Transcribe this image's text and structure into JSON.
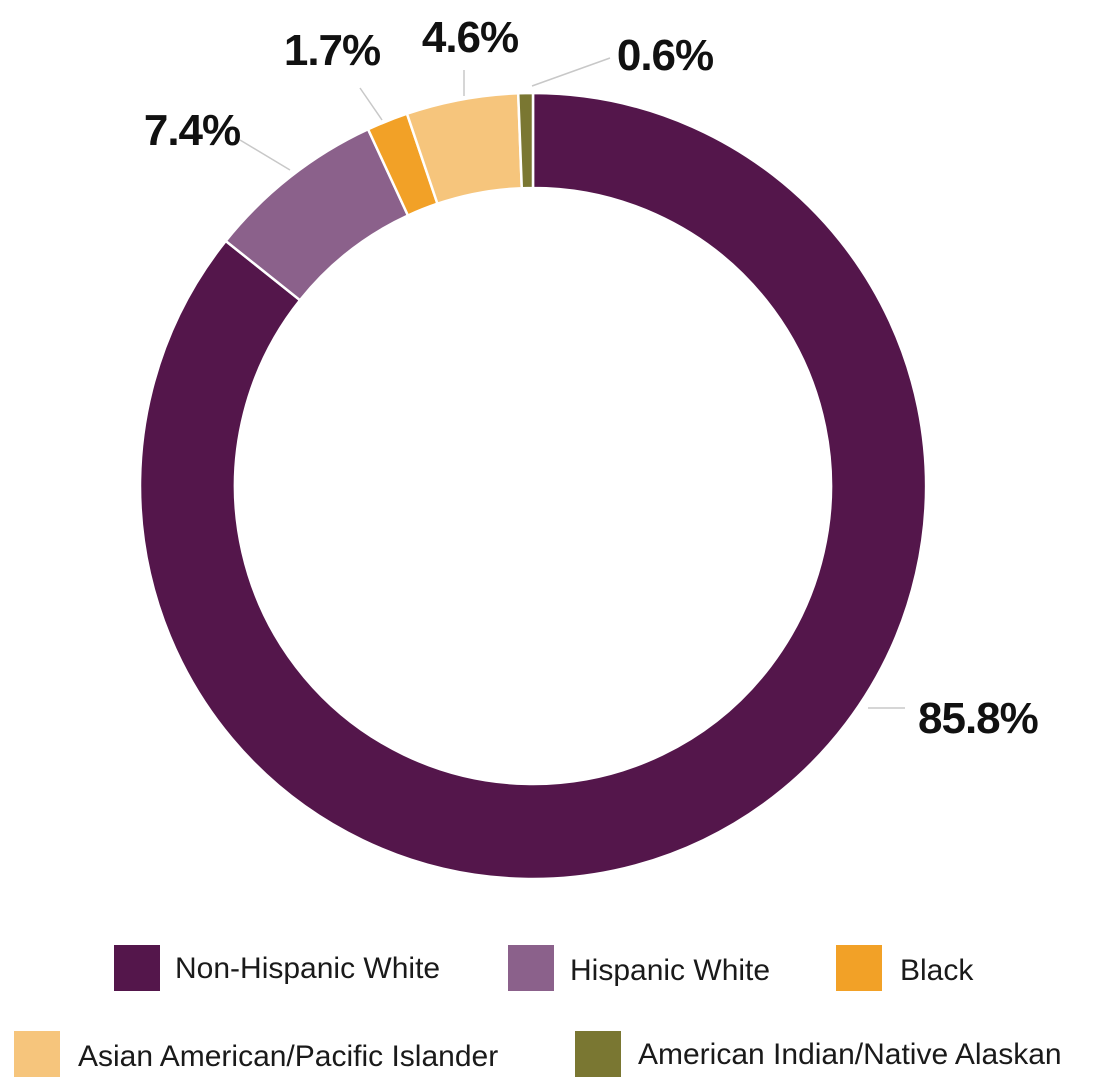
{
  "chart_data": {
    "type": "pie",
    "variant": "donut",
    "title": "",
    "legend_position": "bottom",
    "slices": [
      {
        "name": "Non-Hispanic White",
        "value": 85.8,
        "label": "85.8%",
        "color": "#54164b"
      },
      {
        "name": "Hispanic White",
        "value": 7.4,
        "label": "7.4%",
        "color": "#8b618b"
      },
      {
        "name": "Black",
        "value": 1.7,
        "label": "1.7%",
        "color": "#f2a127"
      },
      {
        "name": "Asian American/Pacific Islander",
        "value": 4.6,
        "label": "4.6%",
        "color": "#f6c57c"
      },
      {
        "name": "American Indian/Native Alaskan",
        "value": 0.6,
        "label": "0.6%",
        "color": "#7a7732"
      }
    ]
  }
}
